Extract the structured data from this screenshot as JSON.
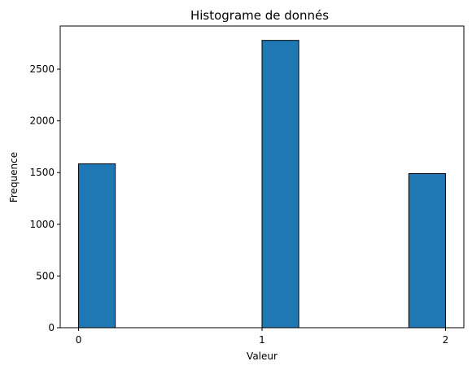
{
  "chart_data": {
    "type": "bar",
    "title": "Histograme de donnés",
    "xlabel": "Valeur",
    "ylabel": "Frequence",
    "bins": [
      {
        "x_start": 0.0,
        "x_end": 0.2,
        "value": 1585
      },
      {
        "x_start": 1.0,
        "x_end": 1.2,
        "value": 2778
      },
      {
        "x_start": 1.8,
        "x_end": 2.0,
        "value": 1490
      }
    ],
    "xlim": [
      -0.1,
      2.1
    ],
    "ylim": [
      0,
      2917
    ],
    "x_ticks": [
      0,
      1,
      2
    ],
    "y_ticks": [
      0,
      500,
      1000,
      1500,
      2000,
      2500
    ],
    "bar_color": "#1f77b4",
    "edge_color": "#000000",
    "grid": false,
    "legend": "none"
  }
}
